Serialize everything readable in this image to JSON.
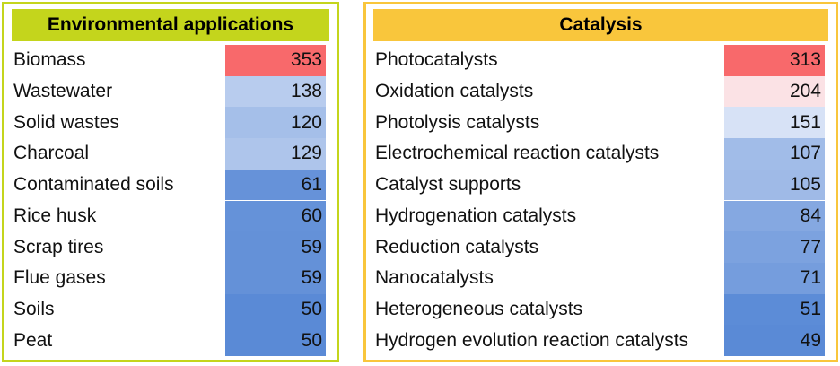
{
  "chart_data": [
    {
      "type": "table",
      "title": "Environmental applications",
      "title_bg": "#c4d51c",
      "border": "#c4d51c",
      "rows": [
        {
          "label": "Biomass",
          "value": 353
        },
        {
          "label": "Wastewater",
          "value": 138
        },
        {
          "label": "Solid wastes",
          "value": 120
        },
        {
          "label": "Charcoal",
          "value": 129
        },
        {
          "label": "Contaminated soils",
          "value": 61
        },
        {
          "label": "Rice husk",
          "value": 60
        },
        {
          "label": "Scrap tires",
          "value": 59
        },
        {
          "label": "Flue gases",
          "value": 59
        },
        {
          "label": "Soils",
          "value": 50
        },
        {
          "label": "Peat",
          "value": 50
        }
      ]
    },
    {
      "type": "table",
      "title": "Catalysis",
      "title_bg": "#f9c63c",
      "border": "#f9c63c",
      "rows": [
        {
          "label": "Photocatalysts",
          "value": 313
        },
        {
          "label": "Oxidation catalysts",
          "value": 204
        },
        {
          "label": "Photolysis catalysts",
          "value": 151
        },
        {
          "label": "Electrochemical reaction catalysts",
          "value": 107
        },
        {
          "label": "Catalyst supports",
          "value": 105
        },
        {
          "label": "Hydrogenation catalysts",
          "value": 84
        },
        {
          "label": "Reduction catalysts",
          "value": 77
        },
        {
          "label": "Nanocatalysts",
          "value": 71
        },
        {
          "label": "Heterogeneous catalysts",
          "value": 51
        },
        {
          "label": "Hydrogen evolution reaction catalysts",
          "value": 49
        }
      ]
    }
  ],
  "colors": {
    "high": "#f8696b",
    "mid": "#fcfcff",
    "low": "#5a8ad6"
  }
}
